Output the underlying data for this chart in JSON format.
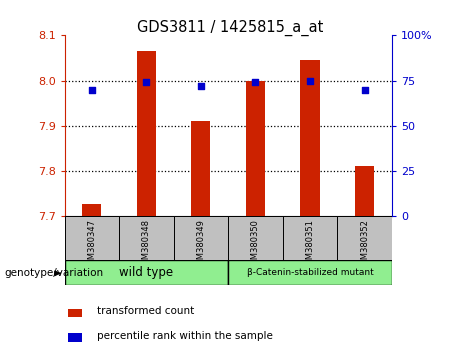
{
  "title": "GDS3811 / 1425815_a_at",
  "samples": [
    "GSM380347",
    "GSM380348",
    "GSM380349",
    "GSM380350",
    "GSM380351",
    "GSM380352"
  ],
  "transformed_counts": [
    7.726,
    8.065,
    7.91,
    8.0,
    8.045,
    7.81
  ],
  "percentile_ranks": [
    70,
    74,
    72,
    74,
    75,
    70
  ],
  "ylim_left": [
    7.7,
    8.1
  ],
  "ylim_right": [
    0,
    100
  ],
  "yticks_left": [
    7.7,
    7.8,
    7.9,
    8.0,
    8.1
  ],
  "yticks_right": [
    0,
    25,
    50,
    75,
    100
  ],
  "bar_color": "#CC2200",
  "dot_color": "#0000CC",
  "bar_width": 0.35,
  "tick_label_area_color": "#C0C0C0",
  "group_label_color": "#90EE90",
  "left_axis_color": "#CC2200",
  "right_axis_color": "#0000CC",
  "wild_type_label": "wild type",
  "mutant_label": "β-Catenin-stabilized mutant",
  "genotype_label": "genotype/variation",
  "legend_red": "transformed count",
  "legend_blue": "percentile rank within the sample"
}
